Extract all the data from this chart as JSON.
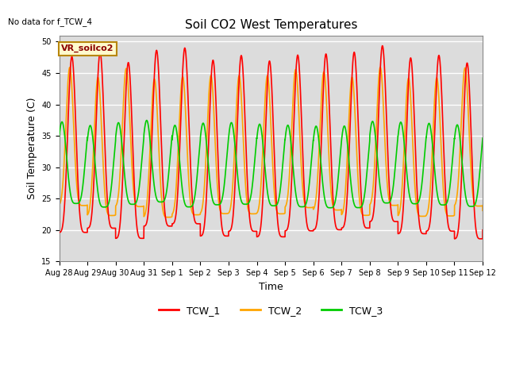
{
  "title": "Soil CO2 West Temperatures",
  "no_data_text": "No data for f_TCW_4",
  "annotation_text": "VR_soilco2",
  "xlabel": "Time",
  "ylabel": "Soil Temperature (C)",
  "ylim": [
    15,
    51
  ],
  "yticks": [
    15,
    20,
    25,
    30,
    35,
    40,
    45,
    50
  ],
  "colors": {
    "TCW_1": "#FF0000",
    "TCW_2": "#FFA500",
    "TCW_3": "#00CC00"
  },
  "background_color": "#DCDCDC",
  "grid_color": "#FFFFFF",
  "tick_labels": [
    "Aug 28",
    "Aug 29",
    "Aug 30",
    "Aug 31",
    "Sep 1",
    "Sep 2",
    "Sep 3",
    "Sep 4",
    "Sep 5",
    "Sep 6",
    "Sep 7",
    "Sep 8",
    "Sep 9",
    "Sep 10",
    "Sep 11",
    "Sep 12"
  ],
  "tick_positions_days": [
    0,
    1,
    2,
    3,
    4,
    5,
    6,
    7,
    8,
    9,
    10,
    11,
    12,
    13,
    14,
    15
  ],
  "linewidth": 1.2,
  "title_fontsize": 11,
  "axis_fontsize": 9,
  "tick_fontsize": 7
}
